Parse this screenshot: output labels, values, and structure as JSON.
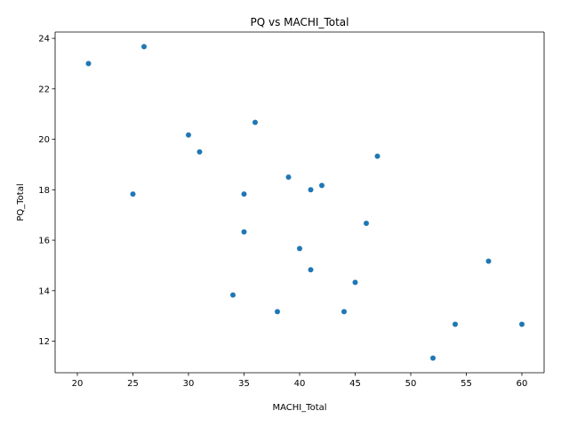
{
  "chart_data": {
    "type": "scatter",
    "title": "PQ vs MACHI_Total",
    "xlabel": "MACHI_Total",
    "ylabel": "PQ_Total",
    "xlim": [
      18.0,
      62.0
    ],
    "ylim": [
      10.75,
      24.25
    ],
    "xticks": [
      20,
      25,
      30,
      35,
      40,
      45,
      50,
      55,
      60
    ],
    "yticks": [
      12,
      14,
      16,
      18,
      20,
      22,
      24
    ],
    "grid": false,
    "marker_color": "#1f77b4",
    "points": [
      {
        "x": 21,
        "y": 23.0
      },
      {
        "x": 26,
        "y": 23.67
      },
      {
        "x": 36,
        "y": 20.67
      },
      {
        "x": 30,
        "y": 20.17
      },
      {
        "x": 31,
        "y": 19.5
      },
      {
        "x": 47,
        "y": 19.33
      },
      {
        "x": 39,
        "y": 18.5
      },
      {
        "x": 42,
        "y": 18.17
      },
      {
        "x": 41,
        "y": 18.0
      },
      {
        "x": 25,
        "y": 17.83
      },
      {
        "x": 35,
        "y": 17.83
      },
      {
        "x": 46,
        "y": 16.67
      },
      {
        "x": 35,
        "y": 16.33
      },
      {
        "x": 40,
        "y": 15.67
      },
      {
        "x": 57,
        "y": 15.17
      },
      {
        "x": 41,
        "y": 14.83
      },
      {
        "x": 45,
        "y": 14.33
      },
      {
        "x": 34,
        "y": 13.83
      },
      {
        "x": 38,
        "y": 13.17
      },
      {
        "x": 44,
        "y": 13.17
      },
      {
        "x": 54,
        "y": 12.67
      },
      {
        "x": 60,
        "y": 12.67
      },
      {
        "x": 52,
        "y": 11.33
      }
    ]
  }
}
